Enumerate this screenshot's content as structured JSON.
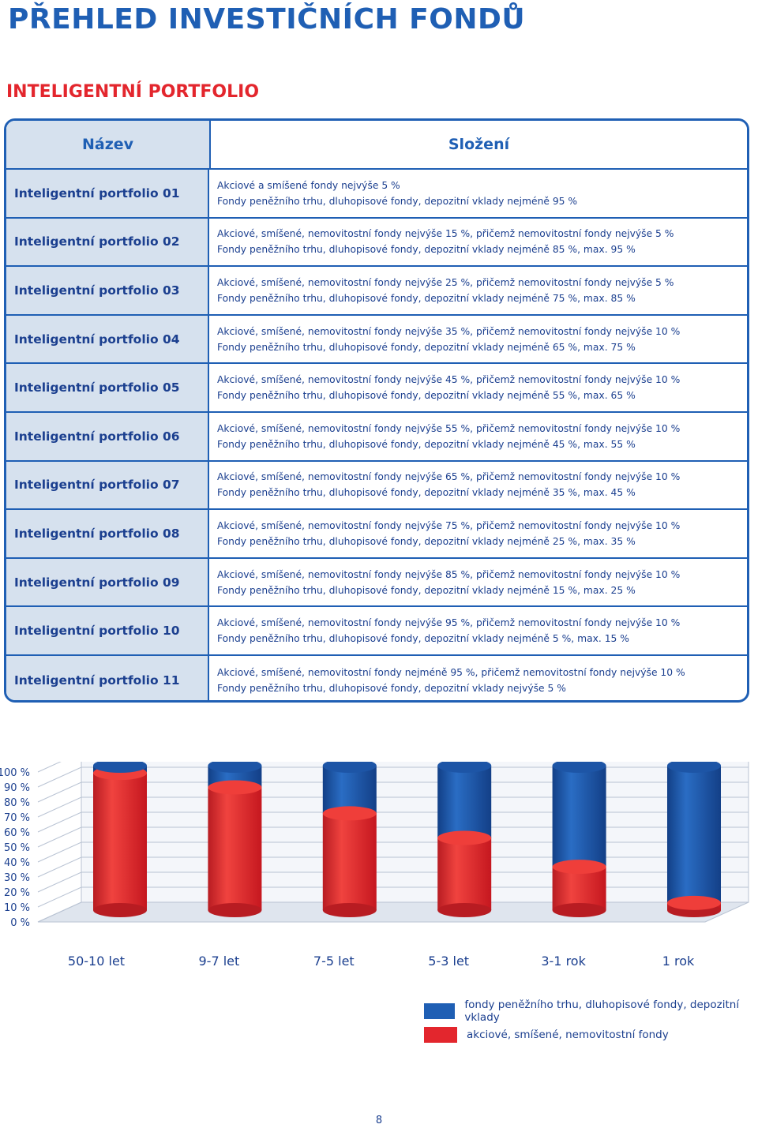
{
  "page": {
    "title": "PŘEHLED INVESTIČNÍCH FONDŮ",
    "section_title": "INTELIGENTNÍ PORTFOLIO",
    "page_number": "8"
  },
  "table": {
    "headers": {
      "name": "Název",
      "composition": "Složení"
    },
    "rows": [
      {
        "name": "Inteligentní portfolio 01",
        "line1": "Akciové a smíšené fondy nejvýše 5 %",
        "line2": "Fondy peněžního trhu, dluhopisové fondy, depozitní vklady nejméně 95 %"
      },
      {
        "name": "Inteligentní portfolio 02",
        "line1": "Akciové, smíšené, nemovitostní fondy nejvýše 15 %, přičemž nemovitostní fondy nejvýše 5 %",
        "line2": "Fondy peněžního trhu, dluhopisové fondy, depozitní vklady nejméně 85 %, max. 95 %"
      },
      {
        "name": "Inteligentní portfolio 03",
        "line1": "Akciové, smíšené, nemovitostní fondy nejvýše 25 %, přičemž nemovitostní fondy nejvýše 5 %",
        "line2": "Fondy peněžního trhu, dluhopisové fondy, depozitní vklady nejméně 75 %, max. 85 %"
      },
      {
        "name": "Inteligentní portfolio 04",
        "line1": "Akciové, smíšené, nemovitostní fondy nejvýše 35 %, přičemž nemovitostní fondy nejvýše 10 %",
        "line2": "Fondy peněžního trhu, dluhopisové fondy, depozitní vklady nejméně 65 %, max. 75 %"
      },
      {
        "name": "Inteligentní portfolio 05",
        "line1": "Akciové, smíšené, nemovitostní fondy nejvýše 45 %, přičemž nemovitostní fondy nejvýše 10 %",
        "line2": "Fondy peněžního trhu, dluhopisové fondy, depozitní vklady nejméně 55 %, max. 65 %"
      },
      {
        "name": "Inteligentní portfolio 06",
        "line1": "Akciové, smíšené, nemovitostní fondy nejvýše 55 %, přičemž nemovitostní fondy nejvýše 10 %",
        "line2": "Fondy peněžního trhu, dluhopisové fondy, depozitní vklady nejméně 45 %, max. 55 %"
      },
      {
        "name": "Inteligentní portfolio 07",
        "line1": "Akciové, smíšené, nemovitostní fondy nejvýše 65 %, přičemž nemovitostní fondy nejvýše 10 %",
        "line2": "Fondy peněžního trhu, dluhopisové fondy, depozitní vklady nejméně 35 %, max. 45 %"
      },
      {
        "name": "Inteligentní portfolio 08",
        "line1": "Akciové, smíšené, nemovitostní fondy nejvýše 75 %, přičemž nemovitostní fondy nejvýše 10 %",
        "line2": "Fondy peněžního trhu, dluhopisové fondy, depozitní vklady nejméně 25 %, max. 35 %"
      },
      {
        "name": "Inteligentní portfolio 09",
        "line1": "Akciové, smíšené, nemovitostní fondy nejvýše 85 %, přičemž nemovitostní fondy nejvýše 10 %",
        "line2": "Fondy peněžního trhu, dluhopisové fondy, depozitní vklady nejméně 15 %, max. 25 %"
      },
      {
        "name": "Inteligentní portfolio 10",
        "line1": "Akciové, smíšené, nemovitostní fondy nejvýše 95 %, přičemž nemovitostní fondy nejvýše 10 %",
        "line2": "Fondy peněžního trhu, dluhopisové fondy, depozitní vklady nejméně 5 %, max. 15 %"
      },
      {
        "name": "Inteligentní portfolio 11",
        "line1": "Akciové, smíšené, nemovitostní fondy nejméně 95 %, přičemž nemovitostní fondy nejvýše 10 %",
        "line2": "Fondy peněžního trhu, dluhopisové fondy, depozitní vklady nejvýše 5 %"
      }
    ]
  },
  "chart_data": {
    "type": "bar",
    "stacked": true,
    "categories": [
      "50-10 let",
      "9-7 let",
      "7-5 let",
      "5-3 let",
      "3-1 rok",
      "1 rok"
    ],
    "y_ticks": [
      "100 %",
      "90 %",
      "80 %",
      "70 %",
      "60 %",
      "50 %",
      "40 %",
      "30 %",
      "20 %",
      "10 %",
      "0 %"
    ],
    "ylim": [
      0,
      100
    ],
    "series": [
      {
        "name": "akciové, smíšené, nemovitostní fondy",
        "color": "#e3262d",
        "values": [
          95,
          85,
          67,
          50,
          30,
          5
        ]
      },
      {
        "name": "fondy peněžního trhu, dluhopisové fondy, depozitní vklady",
        "color": "#1f5fb4",
        "values": [
          5,
          15,
          33,
          50,
          70,
          95
        ]
      }
    ],
    "grid": true,
    "legend": "bottom-right"
  },
  "legend": [
    {
      "label": "fondy peněžního trhu, dluhopisové fondy, depozitní vklady",
      "color": "#1f5fb4"
    },
    {
      "label": "akciové, smíšené, nemovitostní fondy",
      "color": "#e3262d"
    }
  ]
}
